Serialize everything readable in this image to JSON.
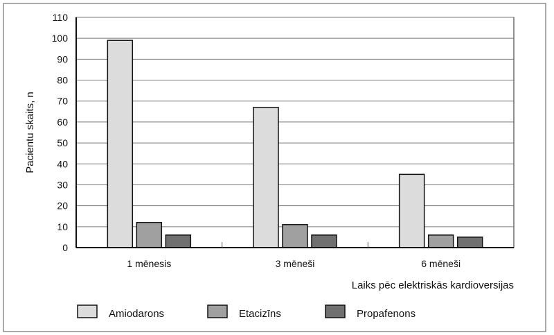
{
  "chart_data": {
    "type": "bar",
    "title": "",
    "xlabel": "Laiks pēc elektriskās kardioversijas",
    "ylabel": "Pacientu skaits, n",
    "ylim": [
      0,
      110
    ],
    "yticks": [
      0,
      10,
      20,
      30,
      40,
      50,
      60,
      70,
      80,
      90,
      100,
      110
    ],
    "grid": true,
    "legend_position": "bottom",
    "categories": [
      "1 mēnesis",
      "3 mēneši",
      "6 mēneši"
    ],
    "series": [
      {
        "name": "Amiodarons",
        "color": "#dcdcdc",
        "values": [
          99,
          67,
          35
        ]
      },
      {
        "name": "Etacizīns",
        "color": "#a0a0a0",
        "values": [
          12,
          11,
          6
        ]
      },
      {
        "name": "Propafenons",
        "color": "#707070",
        "values": [
          6,
          6,
          5
        ]
      }
    ]
  }
}
